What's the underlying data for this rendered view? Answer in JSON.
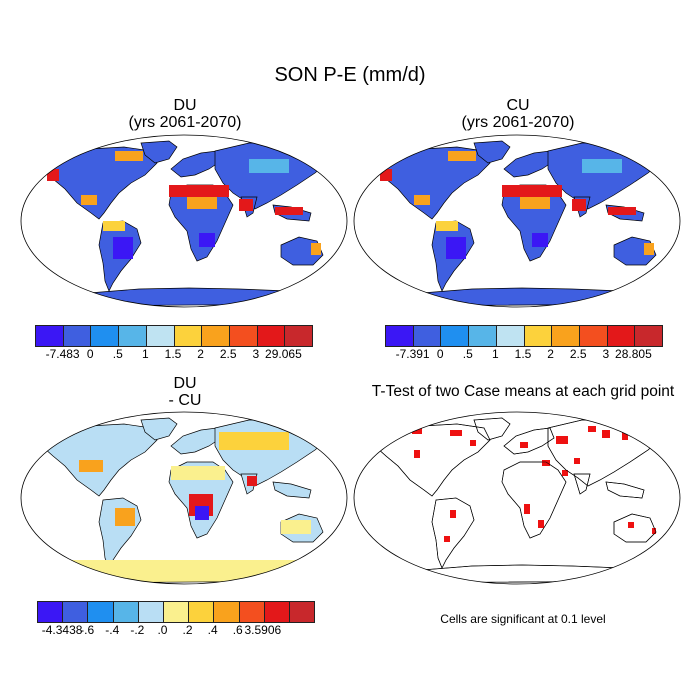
{
  "main_title": "SON P-E (mm/d)",
  "panels": [
    {
      "title_line1": "DU",
      "title_line2": "(yrs 2061-2070)"
    },
    {
      "title_line1": "CU",
      "title_line2": "(yrs 2061-2070)"
    },
    {
      "title_line1": "DU",
      "title_line2": "- CU"
    },
    {
      "title_line1": "T-Test of two Case means at each grid point",
      "title_line2": ""
    }
  ],
  "colorbars": {
    "du": {
      "colors": [
        "#3b17f5",
        "#3f5fe0",
        "#1f8ff0",
        "#57b5e8",
        "#bfe3f2",
        "#fcd23c",
        "#f9a21d",
        "#f34f1f",
        "#e3181a",
        "#c8282c"
      ],
      "labels": [
        "-7.483",
        "0",
        ".5",
        "1",
        "1.5",
        "2",
        "2.5",
        "3",
        "29.065"
      ]
    },
    "cu": {
      "colors": [
        "#3b17f5",
        "#3f5fe0",
        "#1f8ff0",
        "#57b5e8",
        "#bfe3f2",
        "#fcd23c",
        "#f9a21d",
        "#f34f1f",
        "#e3181a",
        "#c8282c"
      ],
      "labels": [
        "-7.391",
        "0",
        ".5",
        "1",
        "1.5",
        "2",
        "2.5",
        "3",
        "28.805"
      ]
    },
    "diff": {
      "colors": [
        "#3b17f5",
        "#3f5fe0",
        "#1f8ff0",
        "#57b5e8",
        "#b9def4",
        "#faf08e",
        "#fcd23c",
        "#f9a21d",
        "#f34f1f",
        "#e3181a",
        "#c8282c"
      ],
      "labels": [
        "-4.3438",
        "-.6",
        "-.4",
        "-.2",
        ".0",
        ".2",
        ".4",
        ".6",
        "3.5906"
      ]
    }
  },
  "significance_note": "Cells are significant at 0.1 level",
  "map_colors": {
    "wet": "#3f5fe0",
    "very_wet": "#3b17f5",
    "mid": "#57b5e8",
    "dry": "#e3181a",
    "warm": "#f9a21d",
    "yellow": "#fcd23c",
    "pale": "#faf08e",
    "paleblue": "#b9def4",
    "sig": "#ee1111"
  }
}
